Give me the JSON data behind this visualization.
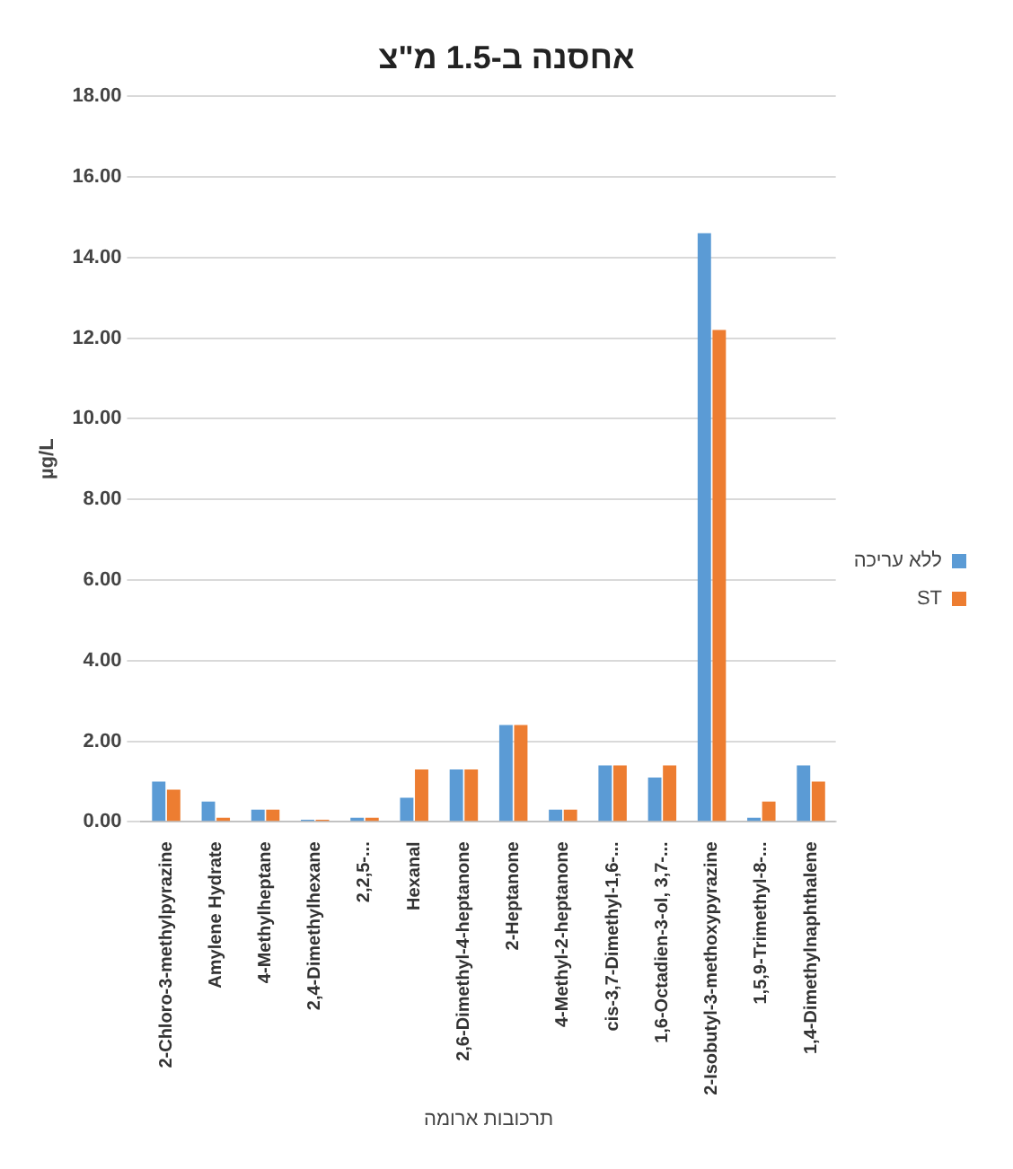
{
  "chart_data": {
    "type": "bar",
    "title": "אחסנה ב-1.5 מ\"צ",
    "ylabel": "µg/L",
    "xlabel": "תרכובות ארומה",
    "categories": [
      "2-Chloro-3-methylpyrazine",
      "Amylene Hydrate",
      "4-Methylheptane",
      "2,4-Dimethylhexane",
      "2,2,5-...",
      "Hexanal",
      "2,6-Dimethyl-4-heptanone",
      "2-Heptanone",
      "4-Methyl-2-heptanone",
      "cis-3,7-Dimethyl-1,6-...",
      "1,6-Octadien-3-ol, 3,7-...",
      "2-Isobutyl-3-methoxypyrazine",
      "1,5,9-Trimethyl-8-...",
      "1,4-Dimethylnaphthalene"
    ],
    "series": [
      {
        "name": "ללא עריכה",
        "color": "#5b9bd5",
        "values": [
          1.0,
          0.5,
          0.3,
          0.05,
          0.1,
          0.6,
          1.3,
          2.4,
          0.3,
          1.4,
          1.1,
          14.6,
          0.1,
          1.4
        ]
      },
      {
        "name": "ST",
        "color": "#ed7d31",
        "values": [
          0.8,
          0.1,
          0.3,
          0.05,
          0.1,
          1.3,
          1.3,
          2.4,
          0.3,
          1.4,
          1.4,
          12.2,
          0.5,
          1.0
        ]
      }
    ],
    "ylim": [
      0,
      18
    ],
    "yticks": [
      {
        "value": 0,
        "label": "0.00"
      },
      {
        "value": 2,
        "label": "2.00"
      },
      {
        "value": 4,
        "label": "4.00"
      },
      {
        "value": 6,
        "label": "6.00"
      },
      {
        "value": 8,
        "label": "8.00"
      },
      {
        "value": 10,
        "label": "10.00"
      },
      {
        "value": 12,
        "label": "12.00"
      },
      {
        "value": 14,
        "label": "14.00"
      },
      {
        "value": 16,
        "label": "16.00"
      },
      {
        "value": 18,
        "label": "18.00"
      }
    ],
    "grid": "y",
    "legend": "right"
  }
}
